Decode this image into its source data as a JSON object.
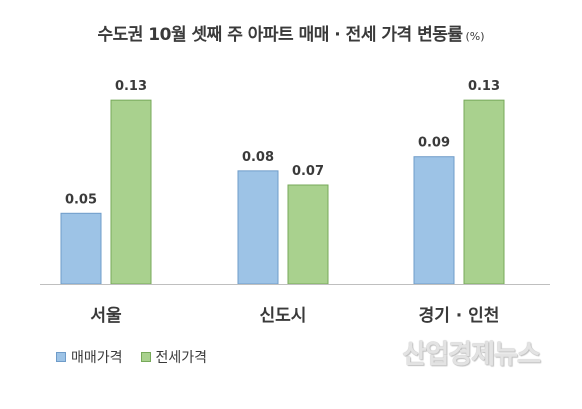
{
  "chart_data": {
    "type": "bar",
    "title": "수도권 10월 셋째 주 아파트 매매 · 전세 가격 변동률",
    "unit": "(%)",
    "categories": [
      "서울",
      "신도시",
      "경기 · 인천"
    ],
    "series": [
      {
        "name": "매매가격",
        "color": "#9dc3e6",
        "border": "#6f9cc9",
        "values": [
          0.05,
          0.08,
          0.09
        ]
      },
      {
        "name": "전세가격",
        "color": "#a9d18e",
        "border": "#77a95a",
        "values": [
          0.13,
          0.07,
          0.13
        ]
      }
    ],
    "value_labels": [
      [
        "0.05",
        "0.08",
        "0.09"
      ],
      [
        "0.13",
        "0.07",
        "0.13"
      ]
    ],
    "ylim": [
      0,
      0.14
    ],
    "grid": false,
    "legend_position": "bottom-left"
  },
  "watermark": "산업경제뉴스"
}
